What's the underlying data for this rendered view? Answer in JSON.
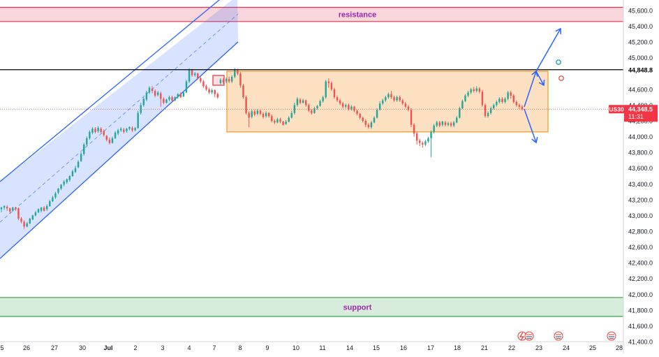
{
  "chart_data": {
    "type": "candlestick",
    "symbol": "US30",
    "last_price": "44,348.5",
    "countdown": "11:31",
    "marked_level": "44,848.8",
    "ylim": [
      41400,
      45700
    ],
    "y_ticks": [
      41400,
      41600,
      41800,
      42000,
      42200,
      42400,
      42600,
      42800,
      43000,
      43200,
      43400,
      43600,
      43800,
      44000,
      44200,
      44400,
      44600,
      44800,
      45000,
      45200,
      45400,
      45600
    ],
    "y_tick_labels": [
      "41,400.0",
      "41,600.0",
      "41,800.0",
      "42,000.0",
      "42,200.0",
      "42,400.0",
      "42,600.0",
      "42,800.0",
      "43,000.0",
      "43,200.0",
      "43,400.0",
      "43,600.0",
      "43,800.0",
      "44,000.0",
      "44,200.0",
      "44,400.0",
      "44,600.0",
      "",
      "45,000.0",
      "45,200.0",
      "45,400.0",
      "45,600.0"
    ],
    "x_ticks": [
      "5",
      "26",
      "27",
      "30",
      "Jul",
      "2",
      "3",
      "4",
      "7",
      "8",
      "9",
      "10",
      "11",
      "14",
      "15",
      "16",
      "17",
      "18",
      "21",
      "22",
      "23",
      "24",
      "25",
      "28"
    ],
    "grid": false,
    "zones": [
      {
        "label": "resistance",
        "low": 45460,
        "high": 45640,
        "color": "#e0334d"
      },
      {
        "label": "support",
        "low": 41720,
        "high": 41960,
        "color": "#3aa04a"
      }
    ],
    "range_box": {
      "low": 44060,
      "high": 44830,
      "color": "#f39c33"
    },
    "channel_color": "#2962ff",
    "up_color": "#26a69a",
    "down_color": "#ef5350",
    "candles": [
      [
        43080,
        43100,
        43040,
        43110
      ],
      [
        43100,
        43120,
        43070,
        43130
      ],
      [
        43110,
        43090,
        43060,
        43130
      ],
      [
        43090,
        43050,
        43020,
        43100
      ],
      [
        43060,
        43100,
        43050,
        43110
      ],
      [
        43100,
        43080,
        43060,
        43110
      ],
      [
        43090,
        42960,
        42940,
        43100
      ],
      [
        42960,
        42920,
        42900,
        42980
      ],
      [
        42920,
        42860,
        42830,
        42940
      ],
      [
        42860,
        42900,
        42850,
        42920
      ],
      [
        42900,
        42960,
        42890,
        42970
      ],
      [
        42950,
        43000,
        42940,
        43010
      ],
      [
        43000,
        43040,
        42990,
        43060
      ],
      [
        43040,
        43080,
        43030,
        43090
      ],
      [
        43060,
        43100,
        43040,
        43110
      ],
      [
        43100,
        43060,
        43050,
        43120
      ],
      [
        43080,
        43120,
        43060,
        43140
      ],
      [
        43120,
        43180,
        43110,
        43200
      ],
      [
        43180,
        43230,
        43170,
        43250
      ],
      [
        43230,
        43280,
        43210,
        43300
      ],
      [
        43290,
        43340,
        43270,
        43350
      ],
      [
        43340,
        43390,
        43320,
        43400
      ],
      [
        43390,
        43430,
        43370,
        43450
      ],
      [
        43420,
        43460,
        43400,
        43470
      ],
      [
        43450,
        43500,
        43430,
        43510
      ],
      [
        43500,
        43560,
        43490,
        43580
      ],
      [
        43550,
        43600,
        43540,
        43630
      ],
      [
        43610,
        43680,
        43600,
        43700
      ],
      [
        43690,
        43780,
        43680,
        43800
      ],
      [
        43780,
        43900,
        43760,
        43920
      ],
      [
        43900,
        43980,
        43880,
        44000
      ],
      [
        43980,
        44060,
        43960,
        44080
      ],
      [
        44050,
        44100,
        44030,
        44120
      ],
      [
        44100,
        44060,
        44040,
        44120
      ],
      [
        44070,
        44110,
        44050,
        44130
      ],
      [
        44100,
        44060,
        44040,
        44120
      ],
      [
        44070,
        44020,
        44000,
        44090
      ],
      [
        44010,
        43960,
        43940,
        44020
      ],
      [
        43960,
        43920,
        43900,
        43990
      ],
      [
        43920,
        43980,
        43910,
        44000
      ],
      [
        43980,
        44050,
        43970,
        44070
      ],
      [
        44040,
        44080,
        44020,
        44100
      ],
      [
        44080,
        44100,
        44060,
        44120
      ],
      [
        44090,
        44060,
        44040,
        44110
      ],
      [
        44070,
        44100,
        44050,
        44110
      ],
      [
        44100,
        44120,
        44080,
        44130
      ],
      [
        44110,
        44080,
        44060,
        44130
      ],
      [
        44080,
        44110,
        44070,
        44120
      ],
      [
        44110,
        44300,
        44100,
        44330
      ],
      [
        44300,
        44400,
        44280,
        44430
      ],
      [
        44400,
        44480,
        44380,
        44500
      ],
      [
        44470,
        44560,
        44450,
        44580
      ],
      [
        44560,
        44620,
        44540,
        44640
      ],
      [
        44610,
        44580,
        44550,
        44640
      ],
      [
        44580,
        44520,
        44500,
        44600
      ],
      [
        44530,
        44560,
        44510,
        44580
      ],
      [
        44550,
        44480,
        44380,
        44570
      ],
      [
        44480,
        44430,
        44410,
        44500
      ],
      [
        44430,
        44470,
        44420,
        44480
      ],
      [
        44470,
        44500,
        44450,
        44520
      ],
      [
        44500,
        44460,
        44440,
        44520
      ],
      [
        44460,
        44500,
        44450,
        44510
      ],
      [
        44500,
        44540,
        44480,
        44550
      ],
      [
        44540,
        44500,
        44490,
        44560
      ],
      [
        44510,
        44560,
        44500,
        44570
      ],
      [
        44560,
        44700,
        44550,
        44720
      ],
      [
        44700,
        44850,
        44680,
        44870
      ],
      [
        44840,
        44780,
        44760,
        44860
      ],
      [
        44780,
        44800,
        44760,
        44820
      ],
      [
        44800,
        44740,
        44720,
        44810
      ],
      [
        44740,
        44700,
        44680,
        44760
      ],
      [
        44700,
        44640,
        44620,
        44720
      ],
      [
        44640,
        44600,
        44580,
        44660
      ],
      [
        44600,
        44560,
        44540,
        44620
      ],
      [
        44560,
        44590,
        44540,
        44610
      ],
      [
        44590,
        44540,
        44500,
        44600
      ],
      [
        44540,
        44500,
        44480,
        44560
      ],
      [
        44680,
        44720,
        44660,
        44740
      ],
      [
        44720,
        44690,
        44670,
        44740
      ],
      [
        44700,
        44730,
        44680,
        44750
      ],
      [
        44730,
        44700,
        44680,
        44760
      ],
      [
        44700,
        44760,
        44680,
        44780
      ],
      [
        44760,
        44850,
        44740,
        44870
      ],
      [
        44840,
        44800,
        44780,
        44860
      ],
      [
        44800,
        44650,
        44620,
        44820
      ],
      [
        44650,
        44500,
        44480,
        44670
      ],
      [
        44500,
        44300,
        44280,
        44520
      ],
      [
        44300,
        44240,
        44120,
        44320
      ],
      [
        44250,
        44320,
        44230,
        44340
      ],
      [
        44320,
        44280,
        44260,
        44340
      ],
      [
        44290,
        44330,
        44270,
        44350
      ],
      [
        44330,
        44290,
        44270,
        44340
      ],
      [
        44290,
        44250,
        44230,
        44310
      ],
      [
        44260,
        44300,
        44240,
        44320
      ],
      [
        44300,
        44260,
        44240,
        44310
      ],
      [
        44260,
        44200,
        44180,
        44280
      ],
      [
        44200,
        44180,
        44160,
        44220
      ],
      [
        44180,
        44220,
        44170,
        44240
      ],
      [
        44220,
        44190,
        44170,
        44240
      ],
      [
        44190,
        44150,
        44140,
        44200
      ],
      [
        44160,
        44190,
        44150,
        44210
      ],
      [
        44190,
        44240,
        44180,
        44260
      ],
      [
        44240,
        44300,
        44230,
        44330
      ],
      [
        44300,
        44400,
        44280,
        44430
      ],
      [
        44400,
        44480,
        44380,
        44500
      ],
      [
        44470,
        44430,
        44410,
        44490
      ],
      [
        44430,
        44460,
        44420,
        44480
      ],
      [
        44460,
        44400,
        44380,
        44470
      ],
      [
        44400,
        44330,
        44310,
        44420
      ],
      [
        44330,
        44300,
        44280,
        44350
      ],
      [
        44300,
        44360,
        44290,
        44380
      ],
      [
        44360,
        44390,
        44340,
        44400
      ],
      [
        44390,
        44450,
        44380,
        44470
      ],
      [
        44450,
        44500,
        44430,
        44520
      ],
      [
        44500,
        44700,
        44480,
        44720
      ],
      [
        44700,
        44680,
        44620,
        44740
      ],
      [
        44680,
        44600,
        44580,
        44700
      ],
      [
        44600,
        44500,
        44480,
        44620
      ],
      [
        44500,
        44460,
        44440,
        44520
      ],
      [
        44460,
        44420,
        44400,
        44480
      ],
      [
        44420,
        44380,
        44360,
        44440
      ],
      [
        44380,
        44400,
        44360,
        44420
      ],
      [
        44400,
        44350,
        44330,
        44420
      ],
      [
        44350,
        44380,
        44330,
        44400
      ],
      [
        44380,
        44330,
        44310,
        44390
      ],
      [
        44330,
        44290,
        44270,
        44340
      ],
      [
        44290,
        44240,
        44220,
        44300
      ],
      [
        44240,
        44200,
        44180,
        44250
      ],
      [
        44200,
        44150,
        44120,
        44220
      ],
      [
        44150,
        44120,
        44100,
        44170
      ],
      [
        44120,
        44180,
        44100,
        44200
      ],
      [
        44180,
        44240,
        44170,
        44260
      ],
      [
        44240,
        44340,
        44230,
        44360
      ],
      [
        44340,
        44420,
        44330,
        44450
      ],
      [
        44420,
        44460,
        44400,
        44480
      ],
      [
        44460,
        44500,
        44440,
        44520
      ],
      [
        44500,
        44540,
        44480,
        44560
      ],
      [
        44540,
        44500,
        44480,
        44580
      ],
      [
        44500,
        44460,
        44440,
        44520
      ],
      [
        44460,
        44500,
        44440,
        44520
      ],
      [
        44500,
        44460,
        44440,
        44520
      ],
      [
        44460,
        44420,
        44400,
        44480
      ],
      [
        44420,
        44380,
        44360,
        44440
      ],
      [
        44380,
        44340,
        44320,
        44400
      ],
      [
        44340,
        44150,
        44120,
        44360
      ],
      [
        44150,
        44040,
        44000,
        44170
      ],
      [
        44040,
        43950,
        43900,
        44060
      ],
      [
        43950,
        43920,
        43880,
        43970
      ],
      [
        43920,
        43900,
        43860,
        43940
      ],
      [
        43900,
        43940,
        43880,
        43960
      ],
      [
        43940,
        43980,
        43920,
        44000
      ],
      [
        43980,
        44060,
        43740,
        44080
      ],
      [
        44060,
        44140,
        44040,
        44160
      ],
      [
        44140,
        44180,
        44120,
        44200
      ],
      [
        44180,
        44140,
        44120,
        44200
      ],
      [
        44150,
        44190,
        44130,
        44200
      ],
      [
        44180,
        44150,
        44130,
        44200
      ],
      [
        44150,
        44170,
        44130,
        44190
      ],
      [
        44170,
        44140,
        44120,
        44190
      ],
      [
        44140,
        44180,
        44120,
        44200
      ],
      [
        44180,
        44240,
        44170,
        44260
      ],
      [
        44240,
        44360,
        44230,
        44380
      ],
      [
        44360,
        44450,
        44350,
        44470
      ],
      [
        44450,
        44520,
        44440,
        44540
      ],
      [
        44520,
        44560,
        44500,
        44580
      ],
      [
        44560,
        44600,
        44540,
        44620
      ],
      [
        44600,
        44580,
        44560,
        44630
      ],
      [
        44580,
        44610,
        44560,
        44640
      ],
      [
        44610,
        44570,
        44550,
        44630
      ],
      [
        44570,
        44400,
        44380,
        44590
      ],
      [
        44400,
        44260,
        44240,
        44420
      ],
      [
        44260,
        44300,
        44240,
        44320
      ],
      [
        44300,
        44360,
        44280,
        44380
      ],
      [
        44360,
        44400,
        44340,
        44420
      ],
      [
        44400,
        44440,
        44380,
        44460
      ],
      [
        44440,
        44480,
        44420,
        44500
      ],
      [
        44480,
        44440,
        44420,
        44500
      ],
      [
        44440,
        44480,
        44420,
        44500
      ],
      [
        44480,
        44560,
        44460,
        44580
      ],
      [
        44560,
        44520,
        44480,
        44580
      ],
      [
        44520,
        44440,
        44420,
        44540
      ],
      [
        44440,
        44400,
        44380,
        44460
      ],
      [
        44400,
        44380,
        44350,
        44420
      ],
      [
        44380,
        44348,
        44330,
        44400
      ]
    ],
    "projections": [
      {
        "from": [
          751,
          153
        ],
        "to": [
          768,
          102
        ]
      },
      {
        "from": [
          768,
          102
        ],
        "to": [
          779,
          122
        ]
      },
      {
        "from": [
          768,
          102
        ],
        "to": [
          803,
          41
        ]
      },
      {
        "from": [
          751,
          156
        ],
        "to": [
          768,
          204
        ]
      }
    ]
  },
  "colors": {
    "axis_text": "#131722",
    "price_tag": "#f23645",
    "marked_line": "#000000",
    "axis_line": "#d1d4dc"
  }
}
